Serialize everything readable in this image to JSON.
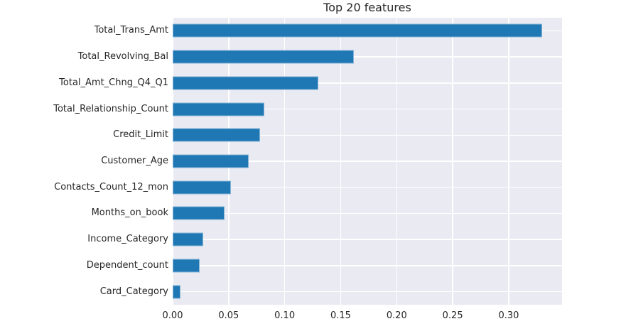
{
  "chart_data": {
    "type": "bar",
    "orientation": "horizontal",
    "title": "Top 20 features",
    "categories": [
      "Total_Trans_Amt",
      "Total_Revolving_Bal",
      "Total_Amt_Chng_Q4_Q1",
      "Total_Relationship_Count",
      "Credit_Limit",
      "Customer_Age",
      "Contacts_Count_12_mon",
      "Months_on_book",
      "Income_Category",
      "Dependent_count",
      "Card_Category"
    ],
    "values": [
      0.33,
      0.162,
      0.13,
      0.082,
      0.078,
      0.068,
      0.052,
      0.046,
      0.027,
      0.024,
      0.007
    ],
    "xlim": [
      0,
      0.3476
    ],
    "xticks": [
      0.0,
      0.05,
      0.1,
      0.15,
      0.2,
      0.25,
      0.3
    ],
    "xtick_labels": [
      "0.00",
      "0.05",
      "0.10",
      "0.15",
      "0.20",
      "0.25",
      "0.30"
    ],
    "xlabel": "",
    "ylabel": "",
    "grid": true,
    "legend": false,
    "colors": {
      "bar": "#1f77b4",
      "plot_background": "#eaeaf2",
      "figure_background": "#ffffff",
      "gridline": "#ffffff",
      "text": "#262626"
    }
  }
}
